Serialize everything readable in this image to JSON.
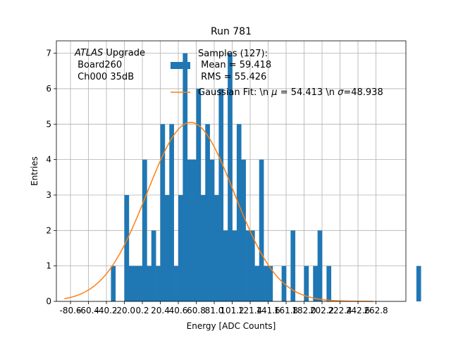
{
  "chart_data": {
    "type": "bar",
    "title": "Run 781",
    "xlabel": "Energy [ADC Counts]",
    "ylabel": "Entries",
    "xlim": [
      -96.47,
      296.47
    ],
    "ylim": [
      0,
      7.35
    ],
    "grid": true,
    "x_ticks": [
      -80.6,
      -60.4,
      -40.2,
      -20.0,
      0.2,
      20.4,
      40.6,
      60.8,
      81.0,
      101.2,
      121.4,
      141.6,
      161.8,
      182.0,
      202.2,
      222.4,
      242.6,
      262.8
    ],
    "x_tick_labels": [
      "-80.6",
      "-60.4",
      "-40.2",
      "-20.0",
      "0.2",
      "20.4",
      "40.6",
      "60.8",
      "81.0",
      "101.2",
      "121.4",
      "141.6",
      "161.8",
      "182.0",
      "202.2",
      "222.4",
      "242.6",
      "262.8"
    ],
    "y_ticks": [
      0,
      1,
      2,
      3,
      4,
      5,
      6,
      7
    ],
    "y_tick_labels": [
      "0",
      "1",
      "2",
      "3",
      "4",
      "5",
      "6",
      "7"
    ],
    "bin_width": 5.05,
    "bin_start": -35.15,
    "histogram": {
      "name": "Samples (127):\n Mean = 59.418\n RMS = 55.426",
      "color": "#1f77b4",
      "counts": [
        1,
        0,
        0,
        3,
        1,
        1,
        1,
        4,
        1,
        2,
        1,
        5,
        3,
        5,
        1,
        3,
        7,
        4,
        4,
        6,
        3,
        5,
        4,
        3,
        6,
        2,
        7,
        2,
        5,
        4,
        2,
        2,
        1,
        4,
        1,
        1,
        0,
        0,
        1,
        0,
        2,
        0,
        0,
        1,
        0,
        1,
        2,
        0,
        1,
        0,
        0,
        0,
        0,
        0,
        0,
        0,
        0,
        0,
        0,
        0,
        0,
        0,
        0,
        0,
        0,
        0,
        0,
        0,
        1
      ]
    },
    "fit": {
      "name": "Gaussian Fit: \\n $\\mu$ = 54.413 \\n $\\sigma$=48.938",
      "color": "#ff7f0e",
      "mu": 54.413,
      "sigma": 48.938,
      "amplitude": 5.05,
      "x_range": [
        -87.5,
        259.5
      ]
    },
    "legend_placement": "top-center",
    "annotation": {
      "lines": [
        "ATLAS Upgrade",
        " Board260",
        " Ch000 35dB"
      ]
    }
  },
  "legend": {
    "hist_lines": [
      "Samples (127):",
      " Mean = 59.418",
      " RMS = 55.426"
    ],
    "fit_label_pre": "Gaussian Fit: \\n ",
    "fit_mu": "μ",
    "fit_mid": " = 54.413 \\n ",
    "fit_sigma": "σ",
    "fit_post": "=48.938"
  },
  "annotation_text": {
    "atlas": "ATLAS",
    "upgrade": " Upgrade",
    "board": " Board260",
    "channel": " Ch000 35dB"
  }
}
